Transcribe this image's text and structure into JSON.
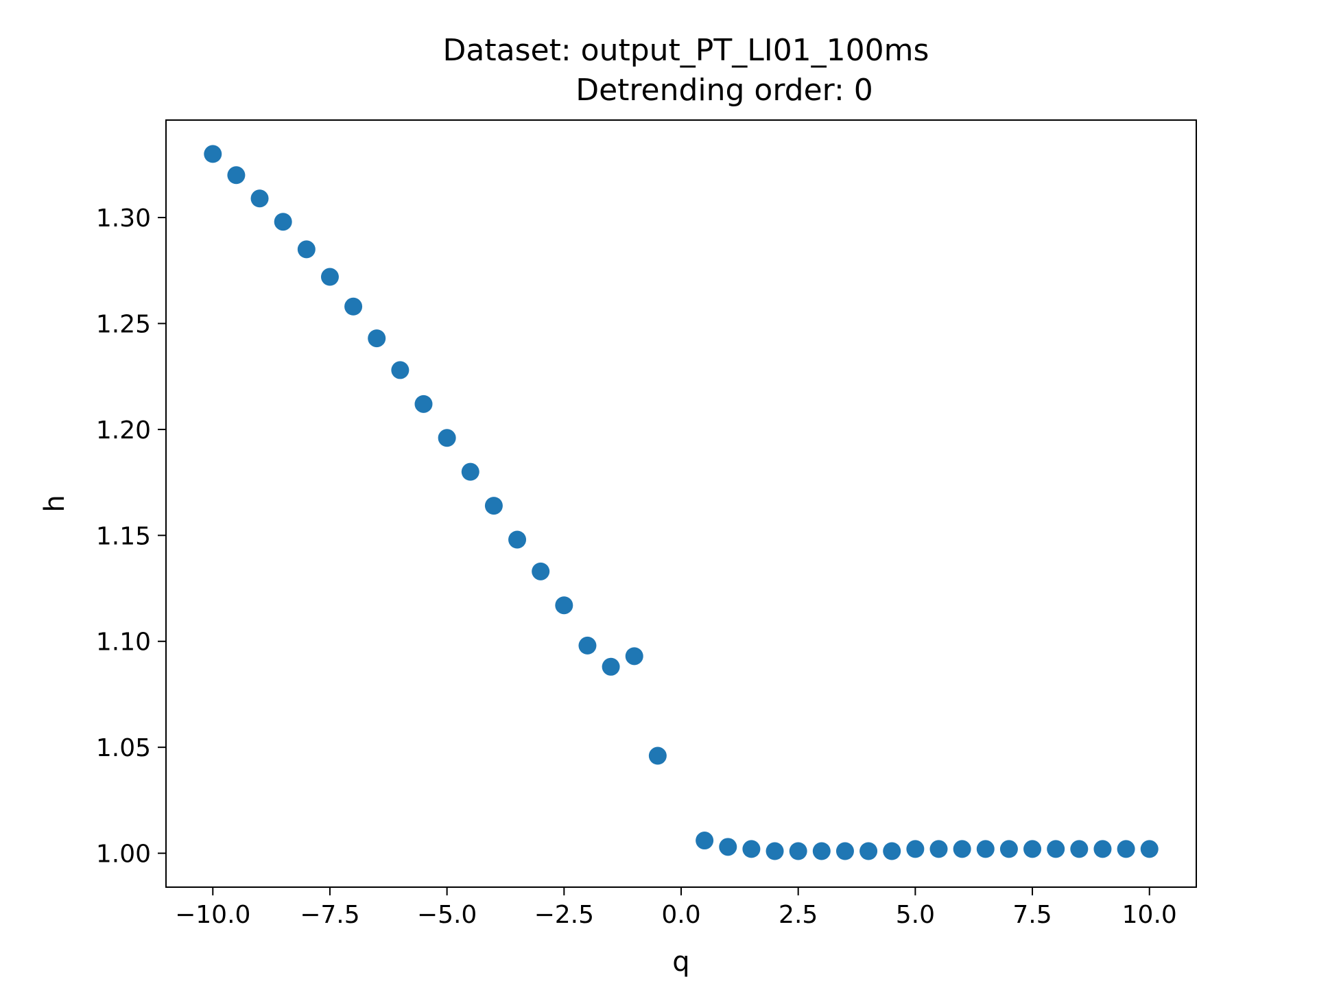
{
  "chart_data": {
    "type": "scatter",
    "title": "Dataset: output_PT_LI01_100ms",
    "subtitle": "Detrending order: 0",
    "xlabel": "q",
    "ylabel": "h",
    "xlim": [
      -11.0,
      11.0
    ],
    "ylim": [
      0.984,
      1.346
    ],
    "x_ticks": [
      -10.0,
      -7.5,
      -5.0,
      -2.5,
      0.0,
      2.5,
      5.0,
      7.5,
      10.0
    ],
    "x_tick_labels": [
      "−10.0",
      "−7.5",
      "−5.0",
      "−2.5",
      "0.0",
      "2.5",
      "5.0",
      "7.5",
      "10.0"
    ],
    "y_ticks": [
      1.0,
      1.05,
      1.1,
      1.15,
      1.2,
      1.25,
      1.3
    ],
    "y_tick_labels": [
      "1.00",
      "1.05",
      "1.10",
      "1.15",
      "1.20",
      "1.25",
      "1.30"
    ],
    "grid": false,
    "marker_color": "#1f77b4",
    "series": [
      {
        "x": [
          -10,
          -9.5,
          -9,
          -8.5,
          -8,
          -7.5,
          -7,
          -6.5,
          -6,
          -5.5,
          -5,
          -4.5,
          -4,
          -3.5,
          -3,
          -2.5,
          -2,
          -1.5,
          -1,
          -0.5,
          0.5,
          1,
          1.5,
          2,
          2.5,
          3,
          3.5,
          4,
          4.5,
          5,
          5.5,
          6,
          6.5,
          7,
          7.5,
          8,
          8.5,
          9,
          9.5,
          10
        ],
        "y": [
          1.33,
          1.32,
          1.309,
          1.298,
          1.285,
          1.272,
          1.258,
          1.243,
          1.228,
          1.212,
          1.196,
          1.18,
          1.164,
          1.148,
          1.133,
          1.117,
          1.098,
          1.088,
          1.093,
          1.046,
          1.006,
          1.003,
          1.002,
          1.001,
          1.001,
          1.001,
          1.001,
          1.001,
          1.001,
          1.002,
          1.002,
          1.002,
          1.002,
          1.002,
          1.002,
          1.002,
          1.002,
          1.002,
          1.002,
          1.002
        ]
      }
    ]
  }
}
